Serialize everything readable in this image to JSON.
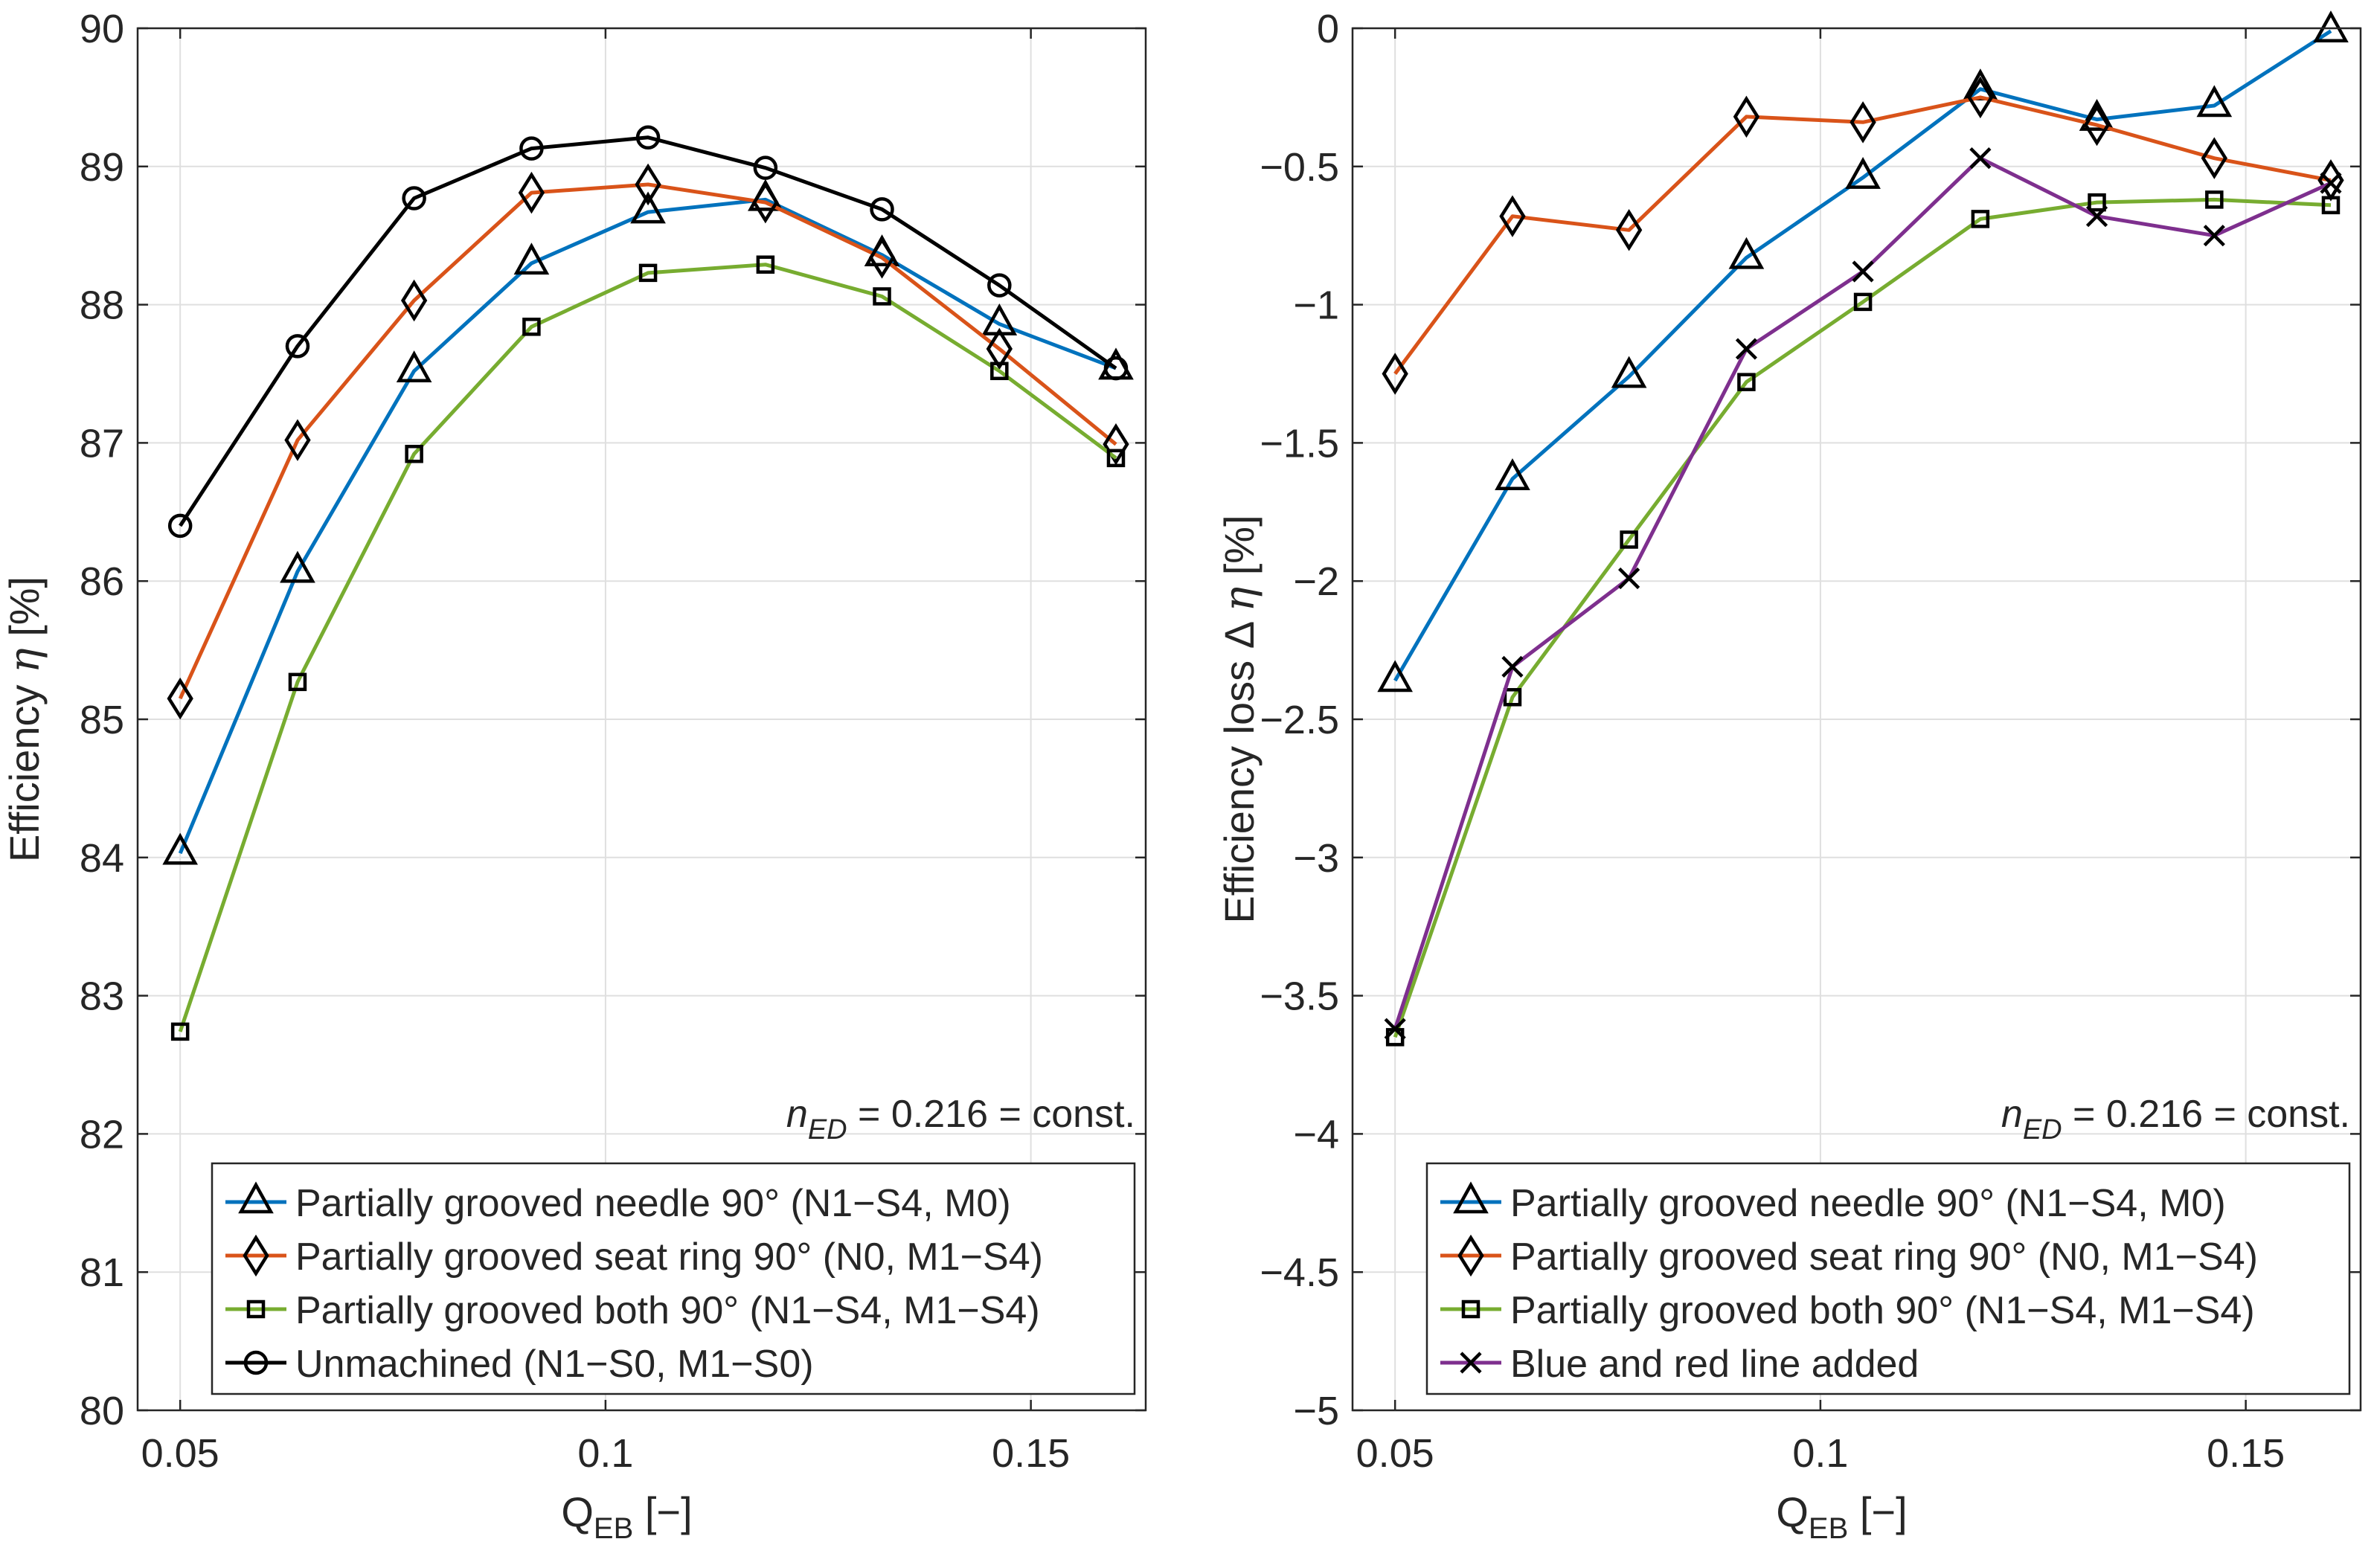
{
  "chart_data": [
    {
      "type": "line",
      "id": "efficiency",
      "ylabel_text": "Efficiency",
      "ylabel_symbol": "η",
      "ylabel_unit": "[%]",
      "xlabel_main": "Q",
      "xlabel_sub": "EB",
      "xlabel_unit": "[−]",
      "xlim": [
        0.045,
        0.1635
      ],
      "ylim": [
        80,
        90
      ],
      "xticks": [
        {
          "v": 0.05,
          "label": "0.05"
        },
        {
          "v": 0.1,
          "label": "0.1"
        },
        {
          "v": 0.15,
          "label": "0.15"
        }
      ],
      "yticks": [
        {
          "v": 80,
          "label": "80"
        },
        {
          "v": 81,
          "label": "81"
        },
        {
          "v": 82,
          "label": "82"
        },
        {
          "v": 83,
          "label": "83"
        },
        {
          "v": 84,
          "label": "84"
        },
        {
          "v": 85,
          "label": "85"
        },
        {
          "v": 86,
          "label": "86"
        },
        {
          "v": 87,
          "label": "87"
        },
        {
          "v": 88,
          "label": "88"
        },
        {
          "v": 89,
          "label": "89"
        },
        {
          "v": 90,
          "label": "90"
        }
      ],
      "grid": true,
      "annotation": {
        "italic_n": "n",
        "sub": "ED",
        "rest": " = 0.216 = const."
      },
      "legend_position": "bottom-right",
      "x": [
        0.05,
        0.0638,
        0.0775,
        0.0913,
        0.105,
        0.1188,
        0.1325,
        0.1463,
        0.16
      ],
      "series": [
        {
          "name": "Partially grooved needle 90° (N1−S4, M0)",
          "color": "#0072BD",
          "marker": "triangle",
          "values": [
            84.03,
            86.07,
            87.52,
            88.3,
            88.67,
            88.76,
            88.36,
            87.86,
            87.54
          ]
        },
        {
          "name": "Partially grooved seat ring 90° (N0, M1−S4)",
          "color": "#D95319",
          "marker": "diamond",
          "values": [
            85.15,
            87.02,
            88.03,
            88.81,
            88.87,
            88.74,
            88.34,
            87.68,
            86.99
          ]
        },
        {
          "name": "Partially grooved both 90° (N1−S4, M1−S4)",
          "color": "#77AC30",
          "marker": "square",
          "values": [
            82.74,
            85.27,
            86.92,
            87.84,
            88.23,
            88.29,
            88.06,
            87.52,
            86.89
          ]
        },
        {
          "name": "Unmachined (N1−S0, M1−S0)",
          "color": "#000000",
          "marker": "circle",
          "values": [
            86.4,
            87.7,
            88.77,
            89.13,
            89.21,
            88.99,
            88.69,
            88.14,
            87.54
          ]
        }
      ]
    },
    {
      "type": "line",
      "id": "efficiency-loss",
      "ylabel_text": "Efficiency loss Δ",
      "ylabel_symbol": "η",
      "ylabel_unit": "[%]",
      "xlabel_main": "Q",
      "xlabel_sub": "EB",
      "xlabel_unit": "[−]",
      "xlim": [
        0.045,
        0.1635
      ],
      "ylim": [
        -5,
        0
      ],
      "xticks": [
        {
          "v": 0.05,
          "label": "0.05"
        },
        {
          "v": 0.1,
          "label": "0.1"
        },
        {
          "v": 0.15,
          "label": "0.15"
        }
      ],
      "yticks": [
        {
          "v": -5,
          "label": "−5"
        },
        {
          "v": -4.5,
          "label": "−4.5"
        },
        {
          "v": -4,
          "label": "−4"
        },
        {
          "v": -3.5,
          "label": "−3.5"
        },
        {
          "v": -3,
          "label": "−3"
        },
        {
          "v": -2.5,
          "label": "−2.5"
        },
        {
          "v": -2,
          "label": "−2"
        },
        {
          "v": -1.5,
          "label": "−1.5"
        },
        {
          "v": -1,
          "label": "−1"
        },
        {
          "v": -0.5,
          "label": "−0.5"
        },
        {
          "v": 0,
          "label": "0"
        }
      ],
      "grid": true,
      "annotation": {
        "italic_n": "n",
        "sub": "ED",
        "rest": " = 0.216 = const."
      },
      "legend_position": "bottom-right",
      "x": [
        0.05,
        0.0638,
        0.0775,
        0.0913,
        0.105,
        0.1188,
        0.1325,
        0.1463,
        0.16
      ],
      "series": [
        {
          "name": "Partially grooved needle 90° (N1−S4, M0)",
          "color": "#0072BD",
          "marker": "triangle",
          "values": [
            -2.36,
            -1.63,
            -1.26,
            -0.83,
            -0.54,
            -0.22,
            -0.33,
            -0.28,
            -0.01
          ]
        },
        {
          "name": "Partially grooved seat ring 90° (N0, M1−S4)",
          "color": "#D95319",
          "marker": "diamond",
          "values": [
            -1.25,
            -0.68,
            -0.73,
            -0.32,
            -0.34,
            -0.25,
            -0.35,
            -0.47,
            -0.55
          ]
        },
        {
          "name": "Partially grooved both 90° (N1−S4, M1−S4)",
          "color": "#77AC30",
          "marker": "square",
          "values": [
            -3.65,
            -2.42,
            -1.85,
            -1.28,
            -0.99,
            -0.69,
            -0.63,
            -0.62,
            -0.64
          ]
        },
        {
          "name": "Blue and red line added",
          "color": "#7E2F8E",
          "marker": "x",
          "values": [
            -3.62,
            -2.31,
            -1.99,
            -1.16,
            -0.88,
            -0.47,
            -0.68,
            -0.75,
            -0.56
          ]
        }
      ]
    }
  ]
}
